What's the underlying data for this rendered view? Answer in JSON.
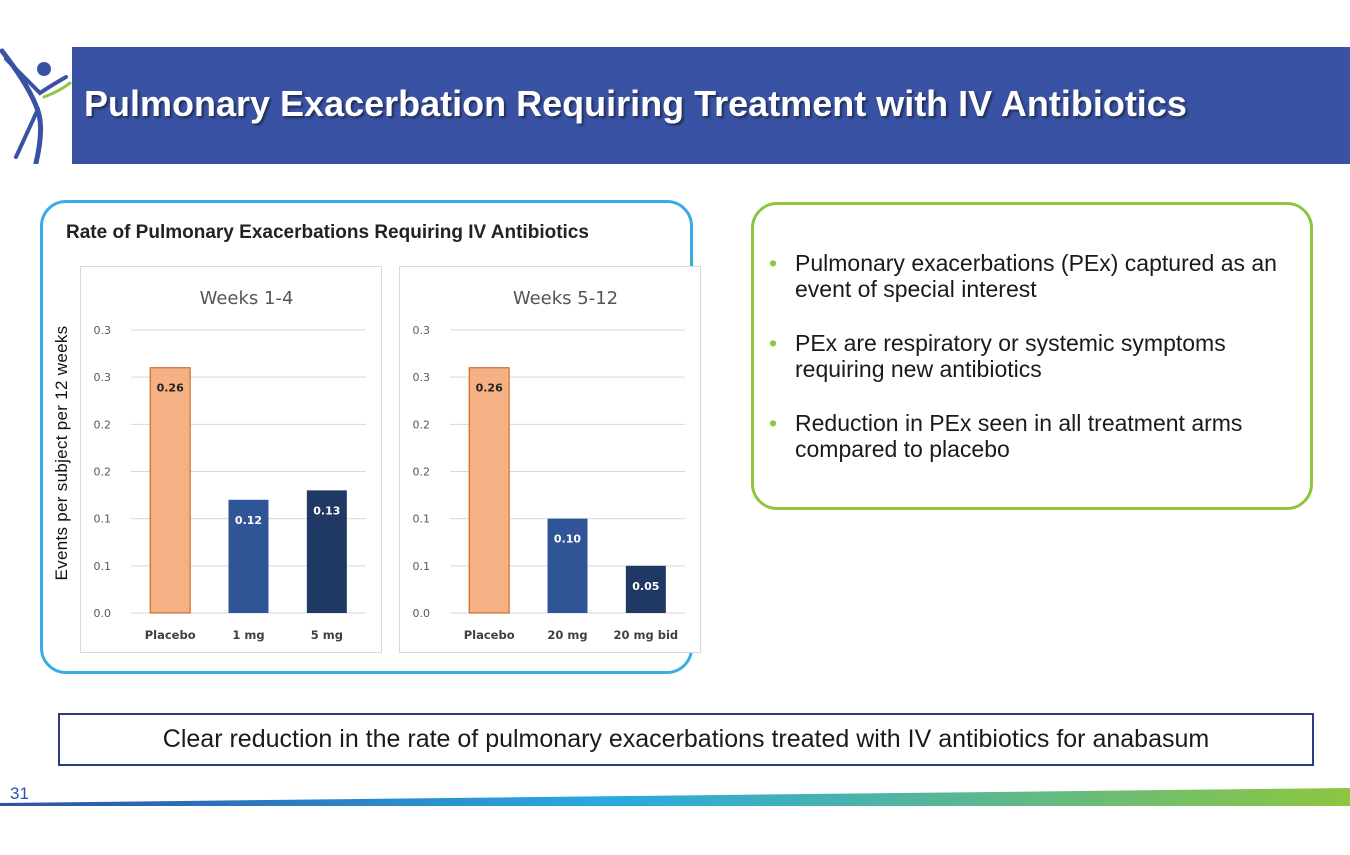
{
  "slide": {
    "title": "Pulmonary Exacerbation Requiring Treatment with IV Antibiotics",
    "panel_title": "Rate of Pulmonary Exacerbations Requiring IV Antibiotics",
    "ylabel": "Events per subject per 12 weeks",
    "bullets": [
      "Pulmonary exacerbations (PEx) captured as an event of special interest",
      "PEx are respiratory or systemic symptoms requiring new antibiotics",
      "Reduction in PEx seen in all treatment arms compared to placebo"
    ],
    "conclusion": "Clear reduction in the rate of pulmonary exacerbations treated with IV antibiotics for anabasum",
    "page_number": "31"
  },
  "colors": {
    "banner": "#3a52a3",
    "placebo_bar": "#f4b183",
    "placebo_border": "#c55a11",
    "mid_bar": "#2f5597",
    "dark_bar": "#203864",
    "left_panel_border": "#3aace4",
    "right_panel_border": "#8dc63f",
    "bullet": "#8dc63f"
  },
  "icons": {
    "logo": "stick-figure-logo-icon"
  },
  "chart_data": [
    {
      "type": "bar",
      "title": "Weeks 1-4",
      "categories": [
        "Placebo",
        "1 mg",
        "5 mg"
      ],
      "values": [
        0.26,
        0.12,
        0.13
      ],
      "data_labels": [
        "0.26",
        "0.12",
        "0.13"
      ],
      "yticks": [
        "0.0",
        "0.1",
        "0.1",
        "0.2",
        "0.2",
        "0.3",
        "0.3"
      ],
      "ylim": [
        0,
        0.3
      ],
      "grid": true
    },
    {
      "type": "bar",
      "title": "Weeks 5-12",
      "categories": [
        "Placebo",
        "20 mg",
        "20 mg bid"
      ],
      "values": [
        0.26,
        0.1,
        0.05
      ],
      "data_labels": [
        "0.26",
        "0.10",
        "0.05"
      ],
      "yticks": [
        "0.0",
        "0.1",
        "0.1",
        "0.2",
        "0.2",
        "0.3",
        "0.3"
      ],
      "ylim": [
        0,
        0.3
      ],
      "grid": true
    }
  ]
}
